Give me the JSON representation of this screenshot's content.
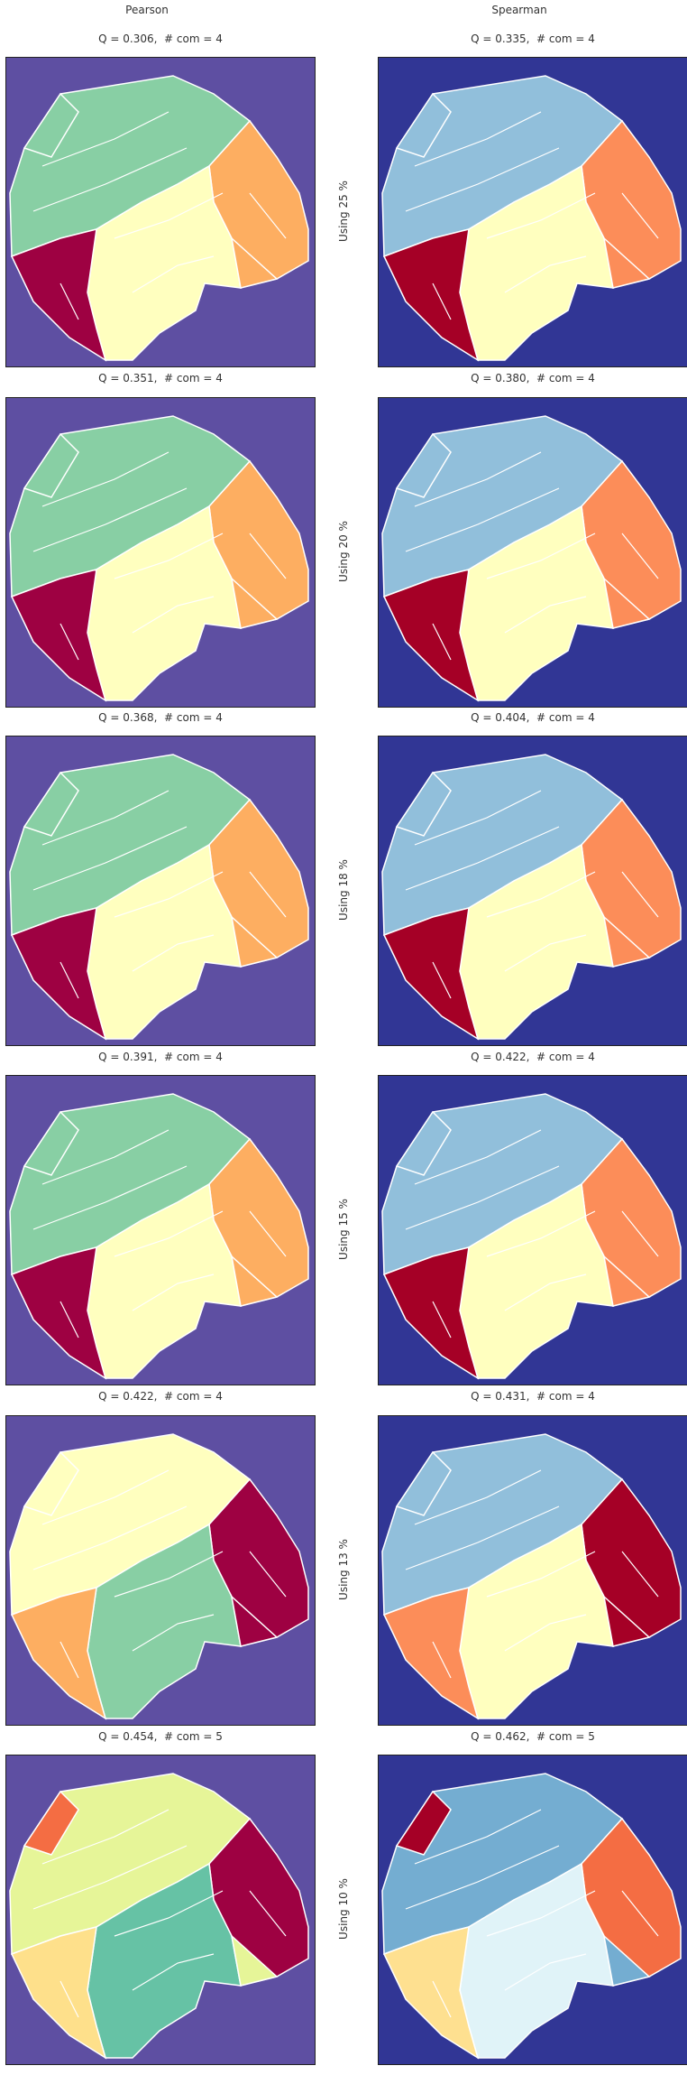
{
  "column_headers": [
    "Pearson",
    "Spearman"
  ],
  "rows": [
    {
      "label": "Using 25 %",
      "pearson": {
        "title": "Q = 0.306,  # com = 4",
        "bg": "#5e4fa2",
        "colors": [
          "#88cfa4",
          "#fdae61",
          "#ffffbf",
          "#9e0142"
        ],
        "map": [
          "cA",
          "cB",
          "cC",
          "cD",
          "cE",
          "cF"
        ]
      },
      "spearman": {
        "title": "Q = 0.335,  # com = 4",
        "bg": "#313695",
        "colors": [
          "#91bfdb",
          "#fc8d59",
          "#ffffbf",
          "#a50026"
        ],
        "map": [
          "cA",
          "cB",
          "cC",
          "cD",
          "cE",
          "cF"
        ]
      }
    },
    {
      "label": "Using 20 %",
      "pearson": {
        "title": "Q = 0.351,  # com = 4",
        "bg": "#5e4fa2",
        "colors": [
          "#88cfa4",
          "#fdae61",
          "#ffffbf",
          "#9e0142"
        ],
        "map": [
          "cA",
          "cD",
          "cC",
          "cB",
          "cE",
          "cF"
        ]
      },
      "spearman": {
        "title": "Q = 0.380,  # com = 4",
        "bg": "#313695",
        "colors": [
          "#91bfdb",
          "#fc8d59",
          "#ffffbf",
          "#a50026"
        ],
        "map": [
          "cA",
          "cB",
          "cC",
          "cD",
          "cE",
          "cF"
        ]
      }
    },
    {
      "label": "Using 18 %",
      "pearson": {
        "title": "Q = 0.368,  # com = 4",
        "bg": "#5e4fa2",
        "colors": [
          "#88cfa4",
          "#fdae61",
          "#ffffbf",
          "#9e0142"
        ],
        "map": [
          "cA",
          "cB",
          "cC",
          "cD",
          "cE",
          "cF"
        ]
      },
      "spearman": {
        "title": "Q = 0.404,  # com = 4",
        "bg": "#313695",
        "colors": [
          "#91bfdb",
          "#fc8d59",
          "#ffffbf",
          "#a50026"
        ],
        "map": [
          "cA",
          "cB",
          "cC",
          "cD",
          "cE",
          "cF"
        ]
      }
    },
    {
      "label": "Using 15 %",
      "pearson": {
        "title": "Q = 0.391,  # com = 4",
        "bg": "#5e4fa2",
        "colors": [
          "#88cfa4",
          "#fdae61",
          "#ffffbf",
          "#9e0142"
        ],
        "map": [
          "cA",
          "cB",
          "cC",
          "cD",
          "cE",
          "cF"
        ]
      },
      "spearman": {
        "title": "Q = 0.422,  # com = 4",
        "bg": "#313695",
        "colors": [
          "#91bfdb",
          "#fc8d59",
          "#ffffbf",
          "#a50026"
        ],
        "map": [
          "cA",
          "cD",
          "cC",
          "cB",
          "cE",
          "cF"
        ]
      }
    },
    {
      "label": "Using 13 %",
      "pearson": {
        "title": "Q = 0.422,  # com = 4",
        "bg": "#5e4fa2",
        "colors": [
          "#ffffbf",
          "#9e0142",
          "#88cfa4",
          "#fdae61"
        ],
        "map": [
          "cA",
          "cB",
          "cC",
          "cD",
          "cE",
          "cF"
        ]
      },
      "spearman": {
        "title": "Q = 0.431,  # com = 4",
        "bg": "#313695",
        "colors": [
          "#91bfdb",
          "#a50026",
          "#ffffbf",
          "#fc8d59"
        ],
        "map": [
          "cA",
          "cB",
          "cC",
          "cD",
          "cE",
          "cF"
        ]
      }
    },
    {
      "label": "Using 10 %",
      "pearson": {
        "title": "Q = 0.454,  # com = 5",
        "bg": "#5e4fa2",
        "colors": [
          "#e6f598",
          "#9e0142",
          "#66c2a5",
          "#fee08b",
          "#f46d43"
        ],
        "map": [
          "cA",
          "cB",
          "cC",
          "cD",
          "cE",
          "cF"
        ]
      },
      "spearman": {
        "title": "Q = 0.462,  # com = 5",
        "bg": "#313695",
        "colors": [
          "#74add1",
          "#f46d43",
          "#e0f3f8",
          "#fee090",
          "#a50026"
        ],
        "map": [
          "cA",
          "cB",
          "cC",
          "cD",
          "cE",
          "cF"
        ]
      }
    }
  ]
}
